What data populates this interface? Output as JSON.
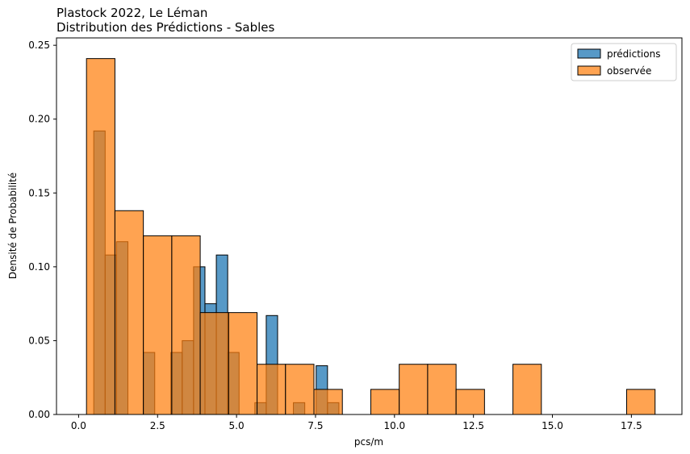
{
  "chart_data": {
    "type": "bar",
    "title": "Plastock 2022, Le Léman",
    "subtitle": "Distribution des Prédictions - Sables",
    "xlabel": "pcs/m",
    "ylabel": "Densité de Probabilité",
    "xlim": [
      -0.7,
      19.1
    ],
    "ylim": [
      0,
      0.255
    ],
    "xticks": [
      0.0,
      2.5,
      5.0,
      7.5,
      10.0,
      12.5,
      15.0,
      17.5
    ],
    "xtick_labels": [
      "0.0",
      "2.5",
      "5.0",
      "7.5",
      "10.0",
      "12.5",
      "15.0",
      "17.5"
    ],
    "yticks": [
      0.0,
      0.05,
      0.1,
      0.15,
      0.2,
      0.25
    ],
    "ytick_labels": [
      "0.00",
      "0.05",
      "0.10",
      "0.15",
      "0.20",
      "0.25"
    ],
    "legend_position": "top-right",
    "grid": false,
    "series": [
      {
        "name": "prédictions",
        "color": "#1f77b4",
        "bin_width": 0.36,
        "bins": [
          {
            "x0": 0.48,
            "y": 0.192
          },
          {
            "x0": 0.84,
            "y": 0.108
          },
          {
            "x0": 1.2,
            "y": 0.117
          },
          {
            "x0": 2.05,
            "y": 0.042
          },
          {
            "x0": 2.92,
            "y": 0.042
          },
          {
            "x0": 3.28,
            "y": 0.05
          },
          {
            "x0": 3.64,
            "y": 0.1
          },
          {
            "x0": 4.0,
            "y": 0.075
          },
          {
            "x0": 4.36,
            "y": 0.108
          },
          {
            "x0": 4.72,
            "y": 0.042
          },
          {
            "x0": 5.58,
            "y": 0.008
          },
          {
            "x0": 5.94,
            "y": 0.067
          },
          {
            "x0": 6.8,
            "y": 0.008
          },
          {
            "x0": 7.52,
            "y": 0.033
          },
          {
            "x0": 7.88,
            "y": 0.008
          }
        ]
      },
      {
        "name": "observée",
        "color": "#ff7f0e",
        "bin_width": 0.9,
        "bins": [
          {
            "x0": 0.25,
            "y": 0.241
          },
          {
            "x0": 1.15,
            "y": 0.138
          },
          {
            "x0": 2.05,
            "y": 0.121
          },
          {
            "x0": 2.95,
            "y": 0.121
          },
          {
            "x0": 3.85,
            "y": 0.069
          },
          {
            "x0": 4.75,
            "y": 0.069
          },
          {
            "x0": 5.65,
            "y": 0.034
          },
          {
            "x0": 6.55,
            "y": 0.034
          },
          {
            "x0": 7.45,
            "y": 0.017
          },
          {
            "x0": 8.35,
            "y": 0.0
          },
          {
            "x0": 9.25,
            "y": 0.017
          },
          {
            "x0": 10.15,
            "y": 0.034
          },
          {
            "x0": 11.05,
            "y": 0.034
          },
          {
            "x0": 11.95,
            "y": 0.017
          },
          {
            "x0": 12.85,
            "y": 0.0
          },
          {
            "x0": 13.75,
            "y": 0.034
          },
          {
            "x0": 14.65,
            "y": 0.0
          },
          {
            "x0": 15.55,
            "y": 0.0
          },
          {
            "x0": 16.45,
            "y": 0.0
          },
          {
            "x0": 17.35,
            "y": 0.017
          }
        ]
      }
    ]
  }
}
